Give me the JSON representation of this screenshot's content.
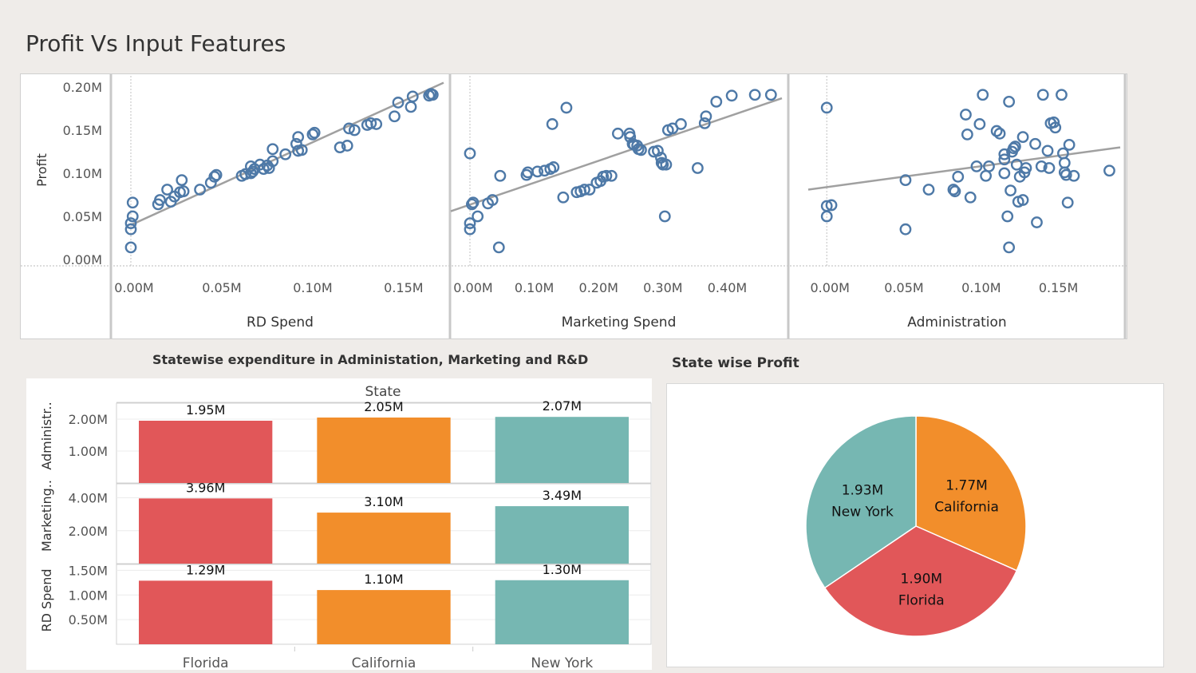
{
  "title": "Profit Vs Input Features",
  "scatter": {
    "ylabel": "Profit",
    "yticks": [
      0,
      0.05,
      0.1,
      0.15,
      0.2
    ],
    "yticklabels": [
      "0.00M",
      "0.05M",
      "0.10M",
      "0.15M",
      "0.20M"
    ],
    "ylim": [
      0,
      0.2
    ],
    "colors": {
      "point": "#4e79a7",
      "trend": "#a0a0a0"
    }
  },
  "chart_data": [
    {
      "type": "scatter",
      "xlabel": "RD Spend",
      "ylabel": "Profit",
      "xlim": [
        0,
        0.172
      ],
      "xticks": [
        0,
        0.05,
        0.1,
        0.15
      ],
      "xticklabels": [
        "0.00M",
        "0.05M",
        "0.10M",
        "0.15M"
      ],
      "trend": [
        [
          0,
          0.04
        ],
        [
          0.172,
          0.205
        ]
      ],
      "points": [
        [
          0.0,
          0.014
        ],
        [
          0.0,
          0.035
        ],
        [
          0.0,
          0.042
        ],
        [
          0.001,
          0.05
        ],
        [
          0.001,
          0.066
        ],
        [
          0.015,
          0.064
        ],
        [
          0.016,
          0.069
        ],
        [
          0.02,
          0.081
        ],
        [
          0.022,
          0.067
        ],
        [
          0.024,
          0.073
        ],
        [
          0.027,
          0.078
        ],
        [
          0.028,
          0.092
        ],
        [
          0.029,
          0.079
        ],
        [
          0.038,
          0.081
        ],
        [
          0.044,
          0.089
        ],
        [
          0.046,
          0.096
        ],
        [
          0.047,
          0.098
        ],
        [
          0.061,
          0.097
        ],
        [
          0.063,
          0.099
        ],
        [
          0.066,
          0.1
        ],
        [
          0.066,
          0.108
        ],
        [
          0.067,
          0.102
        ],
        [
          0.068,
          0.105
        ],
        [
          0.071,
          0.11
        ],
        [
          0.073,
          0.105
        ],
        [
          0.075,
          0.109
        ],
        [
          0.076,
          0.106
        ],
        [
          0.078,
          0.114
        ],
        [
          0.078,
          0.128
        ],
        [
          0.085,
          0.122
        ],
        [
          0.091,
          0.134
        ],
        [
          0.092,
          0.142
        ],
        [
          0.092,
          0.126
        ],
        [
          0.094,
          0.127
        ],
        [
          0.1,
          0.145
        ],
        [
          0.101,
          0.147
        ],
        [
          0.115,
          0.13
        ],
        [
          0.119,
          0.132
        ],
        [
          0.12,
          0.152
        ],
        [
          0.123,
          0.15
        ],
        [
          0.13,
          0.156
        ],
        [
          0.132,
          0.158
        ],
        [
          0.135,
          0.157
        ],
        [
          0.145,
          0.166
        ],
        [
          0.147,
          0.182
        ],
        [
          0.154,
          0.177
        ],
        [
          0.155,
          0.189
        ],
        [
          0.164,
          0.19
        ],
        [
          0.166,
          0.191
        ],
        [
          0.165,
          0.192
        ]
      ]
    },
    {
      "type": "scatter",
      "xlabel": "Marketing Spend",
      "ylabel": "Profit",
      "xlim": [
        0,
        0.485
      ],
      "xticks": [
        0,
        0.1,
        0.2,
        0.3,
        0.4
      ],
      "xticklabels": [
        "0.00M",
        "0.10M",
        "0.20M",
        "0.30M",
        "0.40M"
      ],
      "trend": [
        [
          -0.03,
          0.056
        ],
        [
          0.485,
          0.187
        ]
      ],
      "points": [
        [
          0.0,
          0.123
        ],
        [
          0.0,
          0.042
        ],
        [
          0.0,
          0.035
        ],
        [
          0.003,
          0.064
        ],
        [
          0.005,
          0.066
        ],
        [
          0.012,
          0.05
        ],
        [
          0.028,
          0.065
        ],
        [
          0.035,
          0.069
        ],
        [
          0.045,
          0.014
        ],
        [
          0.047,
          0.097
        ],
        [
          0.088,
          0.098
        ],
        [
          0.09,
          0.101
        ],
        [
          0.105,
          0.102
        ],
        [
          0.116,
          0.103
        ],
        [
          0.125,
          0.105
        ],
        [
          0.13,
          0.107
        ],
        [
          0.128,
          0.157
        ],
        [
          0.145,
          0.072
        ],
        [
          0.15,
          0.176
        ],
        [
          0.166,
          0.078
        ],
        [
          0.172,
          0.079
        ],
        [
          0.178,
          0.081
        ],
        [
          0.186,
          0.081
        ],
        [
          0.197,
          0.089
        ],
        [
          0.203,
          0.091
        ],
        [
          0.207,
          0.096
        ],
        [
          0.212,
          0.097
        ],
        [
          0.22,
          0.097
        ],
        [
          0.23,
          0.146
        ],
        [
          0.248,
          0.146
        ],
        [
          0.249,
          0.142
        ],
        [
          0.253,
          0.134
        ],
        [
          0.255,
          0.133
        ],
        [
          0.26,
          0.132
        ],
        [
          0.262,
          0.128
        ],
        [
          0.266,
          0.127
        ],
        [
          0.286,
          0.125
        ],
        [
          0.292,
          0.126
        ],
        [
          0.297,
          0.118
        ],
        [
          0.298,
          0.112
        ],
        [
          0.3,
          0.11
        ],
        [
          0.305,
          0.11
        ],
        [
          0.303,
          0.05
        ],
        [
          0.308,
          0.15
        ],
        [
          0.315,
          0.152
        ],
        [
          0.328,
          0.157
        ],
        [
          0.354,
          0.106
        ],
        [
          0.365,
          0.158
        ],
        [
          0.367,
          0.166
        ],
        [
          0.383,
          0.183
        ],
        [
          0.407,
          0.19
        ],
        [
          0.443,
          0.191
        ],
        [
          0.468,
          0.191
        ]
      ]
    },
    {
      "type": "scatter",
      "xlabel": "Administration",
      "ylabel": "Profit",
      "xlim": [
        -0.012,
        0.19
      ],
      "xticks": [
        0,
        0.05,
        0.1,
        0.15
      ],
      "xticklabels": [
        "0.00M",
        "0.05M",
        "0.10M",
        "0.15M"
      ],
      "trend": [
        [
          -0.012,
          0.081
        ],
        [
          0.19,
          0.13
        ]
      ],
      "points": [
        [
          0.0,
          0.176
        ],
        [
          0.0,
          0.062
        ],
        [
          0.0,
          0.05
        ],
        [
          0.003,
          0.063
        ],
        [
          0.051,
          0.035
        ],
        [
          0.051,
          0.092
        ],
        [
          0.066,
          0.081
        ],
        [
          0.082,
          0.081
        ],
        [
          0.083,
          0.079
        ],
        [
          0.085,
          0.096
        ],
        [
          0.09,
          0.168
        ],
        [
          0.091,
          0.145
        ],
        [
          0.093,
          0.072
        ],
        [
          0.097,
          0.108
        ],
        [
          0.099,
          0.157
        ],
        [
          0.101,
          0.191
        ],
        [
          0.103,
          0.097
        ],
        [
          0.105,
          0.108
        ],
        [
          0.11,
          0.149
        ],
        [
          0.112,
          0.146
        ],
        [
          0.115,
          0.1
        ],
        [
          0.115,
          0.116
        ],
        [
          0.115,
          0.122
        ],
        [
          0.117,
          0.05
        ],
        [
          0.118,
          0.014
        ],
        [
          0.118,
          0.183
        ],
        [
          0.119,
          0.08
        ],
        [
          0.12,
          0.125
        ],
        [
          0.121,
          0.129
        ],
        [
          0.122,
          0.131
        ],
        [
          0.123,
          0.11
        ],
        [
          0.124,
          0.067
        ],
        [
          0.125,
          0.096
        ],
        [
          0.127,
          0.142
        ],
        [
          0.127,
          0.069
        ],
        [
          0.128,
          0.101
        ],
        [
          0.129,
          0.106
        ],
        [
          0.135,
          0.134
        ],
        [
          0.136,
          0.043
        ],
        [
          0.139,
          0.108
        ],
        [
          0.14,
          0.191
        ],
        [
          0.143,
          0.126
        ],
        [
          0.144,
          0.106
        ],
        [
          0.145,
          0.158
        ],
        [
          0.147,
          0.159
        ],
        [
          0.148,
          0.153
        ],
        [
          0.152,
          0.191
        ],
        [
          0.153,
          0.123
        ],
        [
          0.154,
          0.112
        ],
        [
          0.154,
          0.101
        ],
        [
          0.155,
          0.098
        ],
        [
          0.156,
          0.066
        ],
        [
          0.157,
          0.133
        ],
        [
          0.16,
          0.097
        ],
        [
          0.183,
          0.103
        ]
      ]
    },
    {
      "type": "bar",
      "title": "Statewise expenditure in Administation, Marketing and R&D",
      "header": "State",
      "categories": [
        "Florida",
        "California",
        "New York"
      ],
      "colors": [
        "#e15759",
        "#f28e2b",
        "#76b7b2"
      ],
      "series": [
        {
          "name": "Administr..",
          "axis_label": "Administr..",
          "values": [
            1.95,
            2.05,
            2.07
          ],
          "labels": [
            "1.95M",
            "2.05M",
            "2.07M"
          ],
          "ylim": [
            0,
            2.5
          ],
          "yticks": [
            1.0,
            2.0
          ],
          "yticklabels": [
            "1.00M",
            "2.00M"
          ]
        },
        {
          "name": "Marketing..",
          "axis_label": "Marketing..",
          "values": [
            3.96,
            3.1,
            3.49
          ],
          "labels": [
            "3.96M",
            "3.10M",
            "3.49M"
          ],
          "ylim": [
            0,
            4.85
          ],
          "yticks": [
            2.0,
            4.0
          ],
          "yticklabels": [
            "2.00M",
            "4.00M"
          ]
        },
        {
          "name": "RD Spend",
          "axis_label": "RD Spend",
          "values": [
            1.29,
            1.1,
            1.3
          ],
          "labels": [
            "1.29M",
            "1.10M",
            "1.30M"
          ],
          "ylim": [
            0,
            1.62
          ],
          "yticks": [
            0.5,
            1.0,
            1.5
          ],
          "yticklabels": [
            "0.50M",
            "1.00M",
            "1.50M"
          ]
        }
      ]
    },
    {
      "type": "pie",
      "title": "State wise Profit",
      "slices": [
        {
          "label": "California",
          "value": 1.77,
          "display": "1.77M",
          "color": "#f28e2b"
        },
        {
          "label": "Florida",
          "value": 1.9,
          "display": "1.90M",
          "color": "#e15759"
        },
        {
          "label": "New York",
          "value": 1.93,
          "display": "1.93M",
          "color": "#76b7b2"
        }
      ]
    }
  ]
}
